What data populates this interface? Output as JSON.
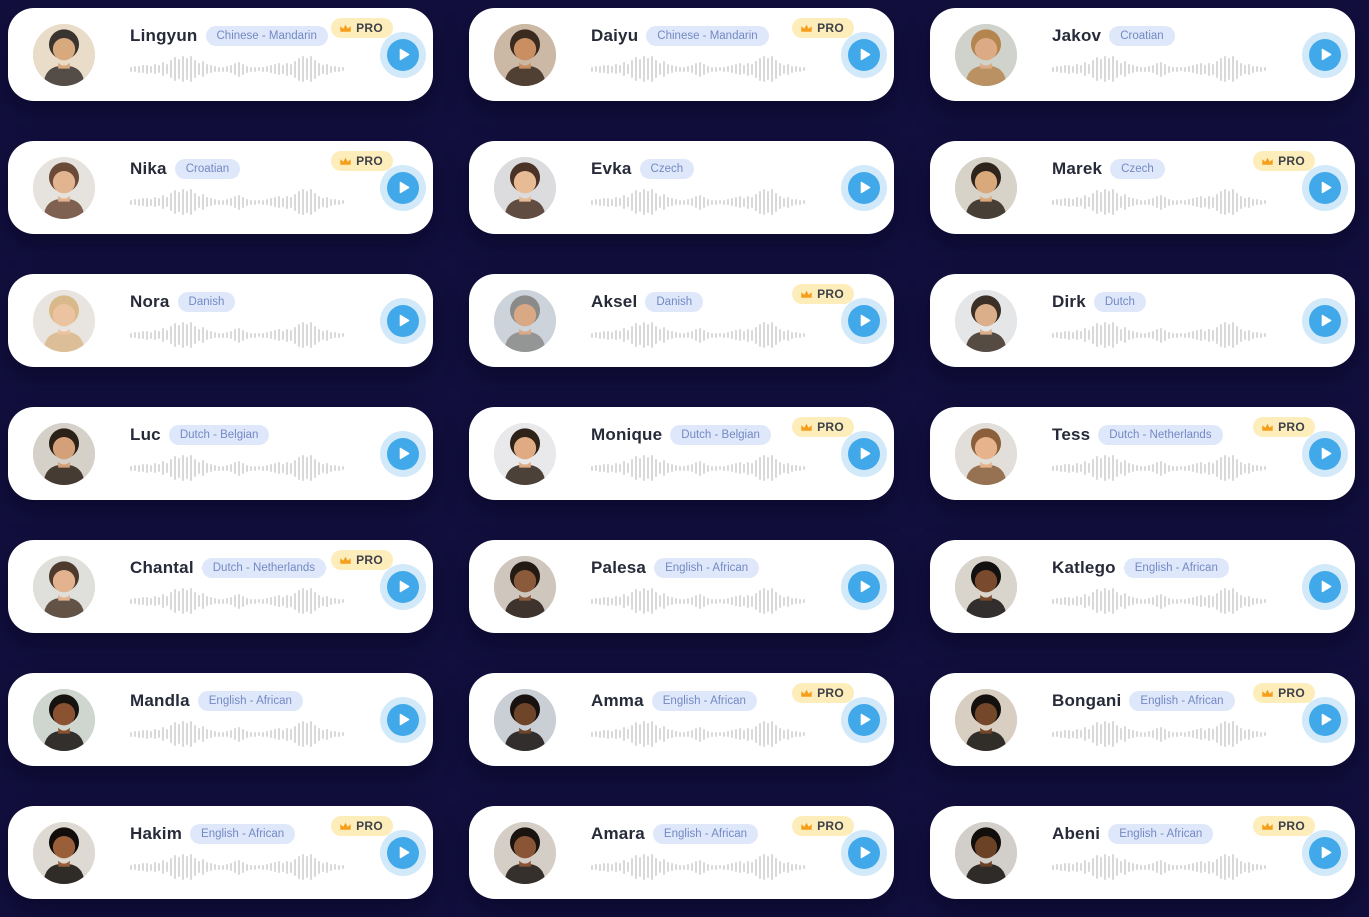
{
  "page": {
    "background_color": "#120F3E",
    "card_color": "#FFFFFF"
  },
  "labels": {
    "pro": "PRO"
  },
  "colors": {
    "name_text": "#272B39",
    "language_badge_bg": "#DFE8FA",
    "language_badge_text": "#7389C4",
    "pro_badge_bg": "#FCEDBB",
    "pro_badge_text": "#3F4149",
    "crown": "#F59E1B",
    "play_halo": "#D2E9FA",
    "play_button": "#41A9E9",
    "waveform_bar": "#D9D9D9"
  },
  "waveform": [
    5,
    6,
    7,
    8,
    9,
    7,
    10,
    8,
    14,
    10,
    18,
    24,
    20,
    26,
    22,
    26,
    18,
    12,
    16,
    10,
    8,
    6,
    5,
    5,
    6,
    8,
    12,
    15,
    11,
    7,
    5,
    5,
    4,
    5,
    6,
    8,
    10,
    12,
    9,
    13,
    11,
    17,
    23,
    26,
    22,
    26,
    19,
    13,
    9,
    11,
    7,
    6,
    5,
    4
  ],
  "voices": [
    {
      "name": "Lingyun",
      "language": "Chinese - Mandarin",
      "pro": true,
      "avatar": {
        "bg": "#E9DCC8",
        "skin": "#D9A97E",
        "hair": "#3A3430"
      }
    },
    {
      "name": "Daiyu",
      "language": "Chinese - Mandarin",
      "pro": true,
      "avatar": {
        "bg": "#CBB8A5",
        "skin": "#C98F62",
        "hair": "#3B2A20"
      }
    },
    {
      "name": "Jakov",
      "language": "Croatian",
      "pro": false,
      "avatar": {
        "bg": "#CFD3CC",
        "skin": "#DCAB85",
        "hair": "#B5854F"
      }
    },
    {
      "name": "Nika",
      "language": "Croatian",
      "pro": true,
      "avatar": {
        "bg": "#E6E3DE",
        "skin": "#E3B490",
        "hair": "#6B4A38"
      }
    },
    {
      "name": "Evka",
      "language": "Czech",
      "pro": false,
      "avatar": {
        "bg": "#DCDCDE",
        "skin": "#E7BB94",
        "hair": "#4A3326"
      }
    },
    {
      "name": "Marek",
      "language": "Czech",
      "pro": true,
      "avatar": {
        "bg": "#D8D3C9",
        "skin": "#D9A87B",
        "hair": "#2E241C"
      }
    },
    {
      "name": "Nora",
      "language": "Danish",
      "pro": false,
      "avatar": {
        "bg": "#E8E4DF",
        "skin": "#ECC3A0",
        "hair": "#D9B98A"
      }
    },
    {
      "name": "Aksel",
      "language": "Danish",
      "pro": true,
      "avatar": {
        "bg": "#CDD3DA",
        "skin": "#D9A885",
        "hair": "#8A8A88"
      }
    },
    {
      "name": "Dirk",
      "language": "Dutch",
      "pro": false,
      "avatar": {
        "bg": "#E4E6E8",
        "skin": "#DCAF8B",
        "hair": "#3C2F26"
      }
    },
    {
      "name": "Luc",
      "language": "Dutch - Belgian",
      "pro": false,
      "avatar": {
        "bg": "#D6D1C8",
        "skin": "#D3A077",
        "hair": "#2C2119"
      }
    },
    {
      "name": "Monique",
      "language": "Dutch - Belgian",
      "pro": true,
      "avatar": {
        "bg": "#E9E9EC",
        "skin": "#E0AB83",
        "hair": "#2F2319"
      }
    },
    {
      "name": "Tess",
      "language": "Dutch - Netherlands",
      "pro": true,
      "avatar": {
        "bg": "#E2DFDA",
        "skin": "#E6B38C",
        "hair": "#8A5F3A"
      }
    },
    {
      "name": "Chantal",
      "language": "Dutch - Netherlands",
      "pro": true,
      "avatar": {
        "bg": "#DFE0DB",
        "skin": "#E2B38E",
        "hair": "#4E3A2C"
      }
    },
    {
      "name": "Palesa",
      "language": "English - African",
      "pro": false,
      "avatar": {
        "bg": "#CFC7BD",
        "skin": "#8A5A3B",
        "hair": "#241A14"
      }
    },
    {
      "name": "Katlego",
      "language": "English - African",
      "pro": false,
      "avatar": {
        "bg": "#D9D4CC",
        "skin": "#7A4A2E",
        "hair": "#131010"
      }
    },
    {
      "name": "Mandla",
      "language": "English - African",
      "pro": false,
      "avatar": {
        "bg": "#CFD6CF",
        "skin": "#8A5230",
        "hair": "#161210"
      }
    },
    {
      "name": "Amma",
      "language": "English - African",
      "pro": true,
      "avatar": {
        "bg": "#C9CFD4",
        "skin": "#6E4528",
        "hair": "#17120F"
      }
    },
    {
      "name": "Bongani",
      "language": "English - African",
      "pro": true,
      "avatar": {
        "bg": "#D8CFC2",
        "skin": "#74462A",
        "hair": "#14100D"
      }
    },
    {
      "name": "Hakim",
      "language": "English - African",
      "pro": true,
      "avatar": {
        "bg": "#DED9D2",
        "skin": "#9A5F38",
        "hair": "#100D0B"
      }
    },
    {
      "name": "Amara",
      "language": "English - African",
      "pro": true,
      "avatar": {
        "bg": "#D5CEC6",
        "skin": "#8A5536",
        "hair": "#1A1411"
      }
    },
    {
      "name": "Abeni",
      "language": "English - African",
      "pro": true,
      "avatar": {
        "bg": "#D2CFCA",
        "skin": "#6B4226",
        "hair": "#120E0C"
      }
    }
  ]
}
